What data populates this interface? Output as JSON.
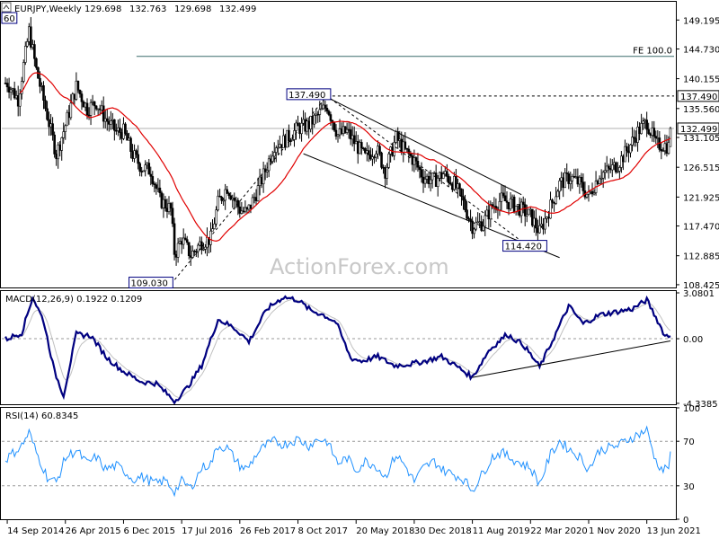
{
  "chart_data": [
    {
      "type": "candlestick",
      "title": "EURJPY,Weekly",
      "ohlc": {
        "open": "129.698",
        "high": "132.763",
        "low": "129.698",
        "close": "132.499"
      },
      "ylim": [
        108.0,
        152.0
      ],
      "y_ticks": [
        "149.195",
        "144.730",
        "140.155",
        "135.560",
        "131.105",
        "126.515",
        "121.925",
        "117.470",
        "112.885",
        "108.425"
      ],
      "current_price": 132.499,
      "current_price_label": "132.499",
      "moving_average_color": "#e00000",
      "candle_color": "#000000",
      "fib_line": {
        "label": "FE 100.0",
        "value": 143.6,
        "x_start_date": "2016-01-25",
        "x_end_date": "2021-08-15"
      },
      "resistance_line": {
        "label": "137.490",
        "value": 137.49,
        "dashed": true
      },
      "annotations": [
        {
          "label": "109.030",
          "value": 109.03,
          "date": "2016-06-20"
        },
        {
          "label": "137.490",
          "value": 137.49,
          "date": "2018-01-28"
        },
        {
          "label": "114.420",
          "value": 114.42,
          "date": "2020-04-26"
        },
        {
          "label": "60",
          "value": 149.8,
          "date": "2014-09-07"
        }
      ],
      "watermark": "ActionForex.com",
      "x_tick_labels": [
        "14 Sep 2014",
        "26 Apr 2015",
        "6 Dec 2015",
        "17 Jul 2016",
        "26 Feb 2017",
        "8 Oct 2017",
        "20 May 2018",
        "30 Dec 2018",
        "11 Aug 2019",
        "22 Mar 2020",
        "1 Nov 2020",
        "13 Jun 2021"
      ],
      "series_close": [
        [
          "2014-09-14",
          139.5
        ],
        [
          "2014-10-26",
          137.0
        ],
        [
          "2014-12-07",
          147.5
        ],
        [
          "2015-01-04",
          141.5
        ],
        [
          "2015-02-15",
          134.5
        ],
        [
          "2015-03-22",
          128.5
        ],
        [
          "2015-04-26",
          133.0
        ],
        [
          "2015-06-07",
          139.0
        ],
        [
          "2015-07-19",
          135.5
        ],
        [
          "2015-08-23",
          136.5
        ],
        [
          "2015-09-27",
          134.0
        ],
        [
          "2015-11-08",
          132.0
        ],
        [
          "2015-12-06",
          132.0
        ],
        [
          "2016-01-10",
          128.5
        ],
        [
          "2016-02-14",
          126.5
        ],
        [
          "2016-03-20",
          126.0
        ],
        [
          "2016-04-24",
          121.5
        ],
        [
          "2016-06-05",
          120.0
        ],
        [
          "2016-06-20",
          113.0
        ],
        [
          "2016-07-17",
          115.5
        ],
        [
          "2016-08-21",
          113.0
        ],
        [
          "2016-10-02",
          115.0
        ],
        [
          "2016-11-06",
          115.5
        ],
        [
          "2016-12-04",
          121.0
        ],
        [
          "2017-01-08",
          123.5
        ],
        [
          "2017-02-26",
          120.0
        ],
        [
          "2017-03-26",
          119.5
        ],
        [
          "2017-04-30",
          122.5
        ],
        [
          "2017-06-04",
          126.0
        ],
        [
          "2017-07-09",
          130.0
        ],
        [
          "2017-08-13",
          130.5
        ],
        [
          "2017-10-08",
          132.5
        ],
        [
          "2017-11-19",
          133.0
        ],
        [
          "2017-12-24",
          134.5
        ],
        [
          "2018-01-28",
          136.0
        ],
        [
          "2018-03-11",
          131.5
        ],
        [
          "2018-04-15",
          132.0
        ],
        [
          "2018-05-20",
          130.0
        ],
        [
          "2018-06-24",
          128.0
        ],
        [
          "2018-08-05",
          129.5
        ],
        [
          "2018-09-09",
          126.0
        ],
        [
          "2018-10-21",
          131.0
        ],
        [
          "2018-11-25",
          129.0
        ],
        [
          "2018-12-30",
          127.5
        ],
        [
          "2019-02-03",
          125.0
        ],
        [
          "2019-03-17",
          124.5
        ],
        [
          "2019-04-21",
          125.5
        ],
        [
          "2019-06-02",
          124.0
        ],
        [
          "2019-07-07",
          121.0
        ],
        [
          "2019-08-11",
          117.5
        ],
        [
          "2019-09-22",
          118.0
        ],
        [
          "2019-10-27",
          120.5
        ],
        [
          "2019-12-01",
          121.5
        ],
        [
          "2020-01-05",
          121.0
        ],
        [
          "2020-02-16",
          120.0
        ],
        [
          "2020-03-22",
          119.0
        ],
        [
          "2020-04-26",
          116.5
        ],
        [
          "2020-06-07",
          120.5
        ],
        [
          "2020-07-12",
          124.0
        ],
        [
          "2020-08-23",
          125.0
        ],
        [
          "2020-09-27",
          124.0
        ],
        [
          "2020-11-01",
          122.0
        ],
        [
          "2020-12-13",
          125.5
        ],
        [
          "2021-01-17",
          126.0
        ],
        [
          "2021-02-21",
          127.0
        ],
        [
          "2021-04-04",
          129.5
        ],
        [
          "2021-05-09",
          132.0
        ],
        [
          "2021-06-13",
          133.5
        ],
        [
          "2021-07-18",
          130.0
        ],
        [
          "2021-08-15",
          130.0
        ],
        [
          "2021-09-05",
          129.7
        ],
        [
          "2021-09-12",
          132.499
        ]
      ],
      "channel": {
        "upper": [
          [
            "2018-01-28",
            137.3
          ],
          [
            "2020-02-16",
            122.3
          ]
        ],
        "lower": [
          [
            "2017-10-29",
            128.6
          ],
          [
            "2020-07-12",
            112.6
          ]
        ],
        "dashed": [
          [
            "2016-06-20",
            109.2
          ],
          [
            "2018-01-28",
            137.49
          ],
          [
            "2020-03-08",
            114.5
          ]
        ]
      }
    },
    {
      "type": "line",
      "title": "MACD(12,26,9) 0.1922 0.1209",
      "ylim": [
        -4.4,
        3.2
      ],
      "y_ticks": [
        "3.0801",
        "0.00",
        "-4.3385"
      ],
      "zero_value": 0,
      "zero_label": "0.00",
      "macd_color": "#000080",
      "signal_color": "#c0c0c0",
      "trendline": [
        [
          "2019-08-11",
          -2.6
        ],
        [
          "2021-09-12",
          -0.15
        ]
      ],
      "series_macd": [
        [
          "2014-09-14",
          0.0
        ],
        [
          "2014-11-09",
          0.4
        ],
        [
          "2014-12-21",
          2.8
        ],
        [
          "2015-02-01",
          1.2
        ],
        [
          "2015-03-15",
          -2.2
        ],
        [
          "2015-04-19",
          -3.8
        ],
        [
          "2015-06-07",
          0.3
        ],
        [
          "2015-08-02",
          0.2
        ],
        [
          "2015-10-04",
          -1.3
        ],
        [
          "2015-12-06",
          -2.2
        ],
        [
          "2016-02-14",
          -2.9
        ],
        [
          "2016-04-10",
          -3.0
        ],
        [
          "2016-06-20",
          -4.2
        ],
        [
          "2016-08-07",
          -3.3
        ],
        [
          "2016-10-02",
          -1.8
        ],
        [
          "2016-12-04",
          1.3
        ],
        [
          "2017-01-29",
          0.8
        ],
        [
          "2017-02-26",
          0.4
        ],
        [
          "2017-04-02",
          -0.2
        ],
        [
          "2017-06-11",
          2.0
        ],
        [
          "2017-08-13",
          2.8
        ],
        [
          "2017-10-08",
          2.6
        ],
        [
          "2017-11-26",
          1.9
        ],
        [
          "2018-01-14",
          1.6
        ],
        [
          "2018-03-04",
          1.1
        ],
        [
          "2018-04-29",
          -1.3
        ],
        [
          "2018-06-10",
          -1.5
        ],
        [
          "2018-08-12",
          -1.2
        ],
        [
          "2018-10-14",
          -1.8
        ],
        [
          "2018-12-16",
          -1.7
        ],
        [
          "2019-02-10",
          -1.5
        ],
        [
          "2019-04-14",
          -1.2
        ],
        [
          "2019-06-16",
          -1.9
        ],
        [
          "2019-08-11",
          -2.6
        ],
        [
          "2019-10-13",
          -0.8
        ],
        [
          "2019-12-22",
          0.3
        ],
        [
          "2020-02-23",
          -0.4
        ],
        [
          "2020-04-26",
          -1.9
        ],
        [
          "2020-06-21",
          0.1
        ],
        [
          "2020-08-16",
          2.2
        ],
        [
          "2020-10-11",
          1.0
        ],
        [
          "2020-12-13",
          1.6
        ],
        [
          "2021-02-14",
          1.8
        ],
        [
          "2021-04-18",
          2.0
        ],
        [
          "2021-06-13",
          2.6
        ],
        [
          "2021-07-25",
          1.2
        ],
        [
          "2021-08-22",
          0.2
        ],
        [
          "2021-09-12",
          0.1922
        ]
      ]
    },
    {
      "type": "line",
      "title": "RSI(14) 60.8345",
      "ylim": [
        0,
        100
      ],
      "y_ticks": [
        "100",
        "70",
        "30",
        "0"
      ],
      "levels": [
        70,
        30
      ],
      "line_color": "#1e90ff",
      "series_rsi": [
        [
          "2014-09-14",
          55
        ],
        [
          "2014-11-09",
          66
        ],
        [
          "2014-12-07",
          78
        ],
        [
          "2015-01-04",
          60
        ],
        [
          "2015-02-15",
          38
        ],
        [
          "2015-03-22",
          33
        ],
        [
          "2015-04-26",
          55
        ],
        [
          "2015-06-07",
          62
        ],
        [
          "2015-07-19",
          50
        ],
        [
          "2015-08-23",
          56
        ],
        [
          "2015-09-27",
          45
        ],
        [
          "2015-11-08",
          48
        ],
        [
          "2015-12-06",
          44
        ],
        [
          "2016-01-10",
          36
        ],
        [
          "2016-02-14",
          38
        ],
        [
          "2016-04-10",
          32
        ],
        [
          "2016-05-15",
          35
        ],
        [
          "2016-06-20",
          25
        ],
        [
          "2016-07-17",
          34
        ],
        [
          "2016-08-21",
          28
        ],
        [
          "2016-10-02",
          46
        ],
        [
          "2016-11-06",
          50
        ],
        [
          "2016-12-04",
          66
        ],
        [
          "2017-01-08",
          64
        ],
        [
          "2017-02-26",
          48
        ],
        [
          "2017-03-26",
          45
        ],
        [
          "2017-04-30",
          58
        ],
        [
          "2017-06-04",
          66
        ],
        [
          "2017-07-09",
          70
        ],
        [
          "2017-08-13",
          67
        ],
        [
          "2017-10-08",
          72
        ],
        [
          "2017-11-19",
          66
        ],
        [
          "2017-12-24",
          72
        ],
        [
          "2018-01-28",
          70
        ],
        [
          "2018-03-11",
          50
        ],
        [
          "2018-04-15",
          55
        ],
        [
          "2018-05-20",
          44
        ],
        [
          "2018-06-24",
          52
        ],
        [
          "2018-08-05",
          48
        ],
        [
          "2018-09-09",
          38
        ],
        [
          "2018-10-21",
          58
        ],
        [
          "2018-11-25",
          48
        ],
        [
          "2018-12-30",
          34
        ],
        [
          "2019-02-03",
          46
        ],
        [
          "2019-03-17",
          52
        ],
        [
          "2019-04-21",
          44
        ],
        [
          "2019-06-02",
          40
        ],
        [
          "2019-07-07",
          36
        ],
        [
          "2019-08-11",
          26
        ],
        [
          "2019-09-22",
          42
        ],
        [
          "2019-10-27",
          56
        ],
        [
          "2019-12-01",
          60
        ],
        [
          "2020-01-05",
          55
        ],
        [
          "2020-02-16",
          50
        ],
        [
          "2020-03-22",
          46
        ],
        [
          "2020-04-26",
          32
        ],
        [
          "2020-06-07",
          58
        ],
        [
          "2020-07-12",
          70
        ],
        [
          "2020-08-23",
          62
        ],
        [
          "2020-09-27",
          56
        ],
        [
          "2020-11-01",
          45
        ],
        [
          "2020-12-13",
          62
        ],
        [
          "2021-01-17",
          64
        ],
        [
          "2021-02-21",
          66
        ],
        [
          "2021-04-04",
          72
        ],
        [
          "2021-05-09",
          76
        ],
        [
          "2021-06-13",
          80
        ],
        [
          "2021-07-18",
          52
        ],
        [
          "2021-08-15",
          44
        ],
        [
          "2021-09-05",
          48
        ],
        [
          "2021-09-12",
          60.8345
        ]
      ]
    }
  ]
}
